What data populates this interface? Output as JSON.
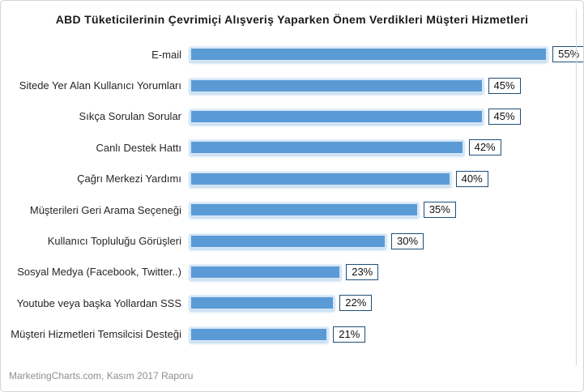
{
  "title": "ABD Tüketicilerinin Çevrimiçi Alışveriş Yaparken Önem Verdikleri Müşteri Hizmetleri",
  "footer": "MarketingCharts.com, Kasım 2017 Raporu",
  "colors": {
    "bar_fill": "#5B9BD5",
    "bar_glow": "#BDD7EE",
    "label_box_border": "#1F4E79",
    "axis_line": "#D9D9D9"
  },
  "chart_data": {
    "type": "bar",
    "orientation": "horizontal",
    "title": "ABD Tüketicilerinin Çevrimiçi Alışveriş Yaparken Önem Verdikleri Müşteri Hizmetleri",
    "categories": [
      "E-mail",
      "Sitede Yer Alan Kullanıcı Yorumları",
      "Sıkça Sorulan Sorular",
      "Canlı Destek Hattı",
      "Çağrı Merkezi Yardımı",
      "Müşterileri Geri Arama Seçeneği",
      "Kullanıcı Topluluğu Görüşleri",
      "Sosyal Medya (Facebook, Twitter..)",
      "Youtube veya başka Yollardan SSS",
      "Müşteri Hizmetleri Temsilcisi Desteği"
    ],
    "values": [
      55,
      45,
      45,
      42,
      40,
      35,
      30,
      23,
      22,
      21
    ],
    "value_suffix": "%",
    "xlabel": "",
    "ylabel": "",
    "xlim": [
      0,
      60
    ],
    "grid": false,
    "data_labels": "boxed",
    "legend": "none",
    "source_note": "MarketingCharts.com, Kasım 2017 Raporu"
  }
}
